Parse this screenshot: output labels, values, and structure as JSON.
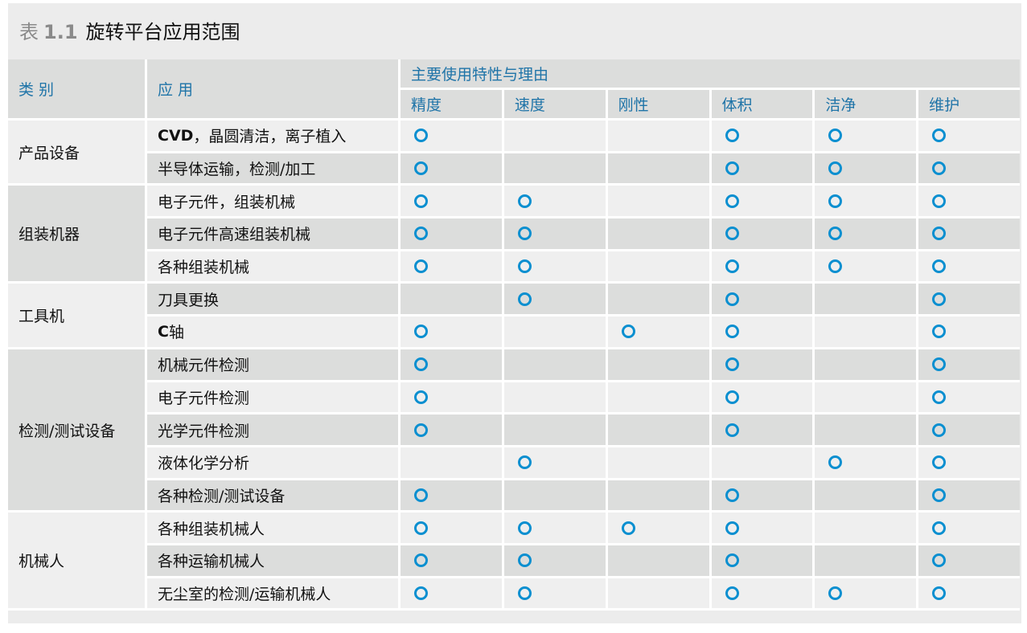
{
  "title": {
    "prefix": "表",
    "number": "1.1",
    "text": "旋转平台应用范围"
  },
  "header": {
    "category": "类 别",
    "application": "应 用",
    "group": "主要使用特性与理由",
    "properties": [
      "精度",
      "速度",
      "刚性",
      "体积",
      "洁净",
      "维护"
    ]
  },
  "colors": {
    "header_text": "#1f74a8",
    "mark": "#0a8fd0"
  },
  "mark_icon": "ring-icon",
  "categories": [
    {
      "label": "产品设备",
      "rows": [
        {
          "app_bold": "CVD",
          "app": "，晶圆清洁，离子植入",
          "marks": [
            1,
            0,
            0,
            1,
            1,
            1
          ]
        },
        {
          "app": "半导体运输，检测/加工",
          "marks": [
            1,
            0,
            0,
            1,
            1,
            1
          ]
        }
      ]
    },
    {
      "label": "组装机器",
      "rows": [
        {
          "app": "电子元件，组装机械",
          "marks": [
            1,
            1,
            0,
            1,
            1,
            1
          ]
        },
        {
          "app": "电子元件高速组装机械",
          "marks": [
            1,
            1,
            0,
            1,
            1,
            1
          ]
        },
        {
          "app": "各种组装机械",
          "marks": [
            1,
            1,
            0,
            1,
            1,
            1
          ]
        }
      ]
    },
    {
      "label": "工具机",
      "rows": [
        {
          "app": "刀具更换",
          "marks": [
            0,
            1,
            0,
            1,
            0,
            1
          ]
        },
        {
          "app_bold": "C",
          "app": "轴",
          "marks": [
            1,
            0,
            1,
            1,
            0,
            1
          ]
        }
      ]
    },
    {
      "label": "检测/测试设备",
      "rows": [
        {
          "app": "机械元件检测",
          "marks": [
            1,
            0,
            0,
            1,
            0,
            1
          ]
        },
        {
          "app": "电子元件检测",
          "marks": [
            1,
            0,
            0,
            1,
            0,
            1
          ]
        },
        {
          "app": "光学元件检测",
          "marks": [
            1,
            0,
            0,
            1,
            0,
            1
          ]
        },
        {
          "app": "液体化学分析",
          "marks": [
            0,
            1,
            0,
            0,
            1,
            1
          ]
        },
        {
          "app": "各种检测/测试设备",
          "marks": [
            1,
            0,
            0,
            1,
            0,
            1
          ]
        }
      ]
    },
    {
      "label": "机械人",
      "rows": [
        {
          "app": "各种组装机械人",
          "marks": [
            1,
            1,
            1,
            1,
            0,
            1
          ]
        },
        {
          "app": "各种运输机械人",
          "marks": [
            1,
            1,
            0,
            1,
            0,
            1
          ]
        },
        {
          "app": "无尘室的检测/运输机械人",
          "marks": [
            1,
            1,
            0,
            1,
            1,
            1
          ]
        }
      ]
    }
  ]
}
